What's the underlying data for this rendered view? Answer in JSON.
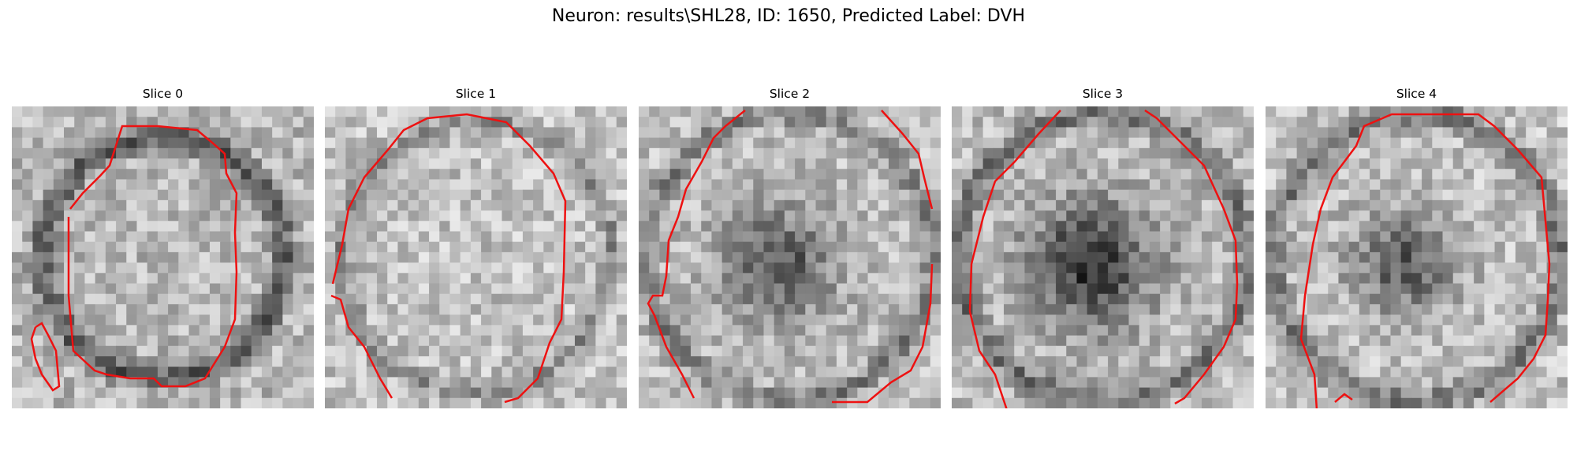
{
  "figure": {
    "title": "Neuron: results\\SHL28, ID: 1650, Predicted Label: DVH"
  },
  "panels": [
    {
      "title": "Slice 0",
      "contour_color": "#ee1111"
    },
    {
      "title": "Slice 1",
      "contour_color": "#ee1111"
    },
    {
      "title": "Slice 2",
      "contour_color": "#ee1111"
    },
    {
      "title": "Slice 3",
      "contour_color": "#ee1111"
    },
    {
      "title": "Slice 4",
      "contour_color": "#ee1111"
    }
  ],
  "colormap": "gray"
}
